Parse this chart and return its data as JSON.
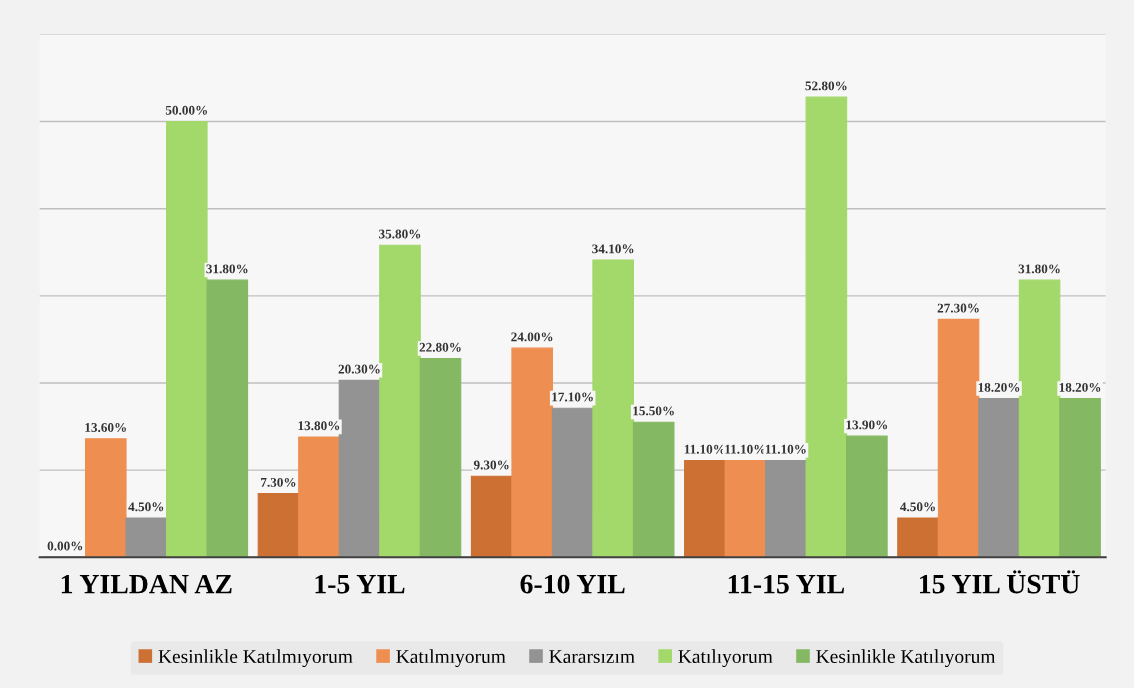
{
  "chart_data": {
    "type": "bar",
    "categories": [
      "1 YILDAN AZ",
      "1-5 YIL",
      "6-10 YIL",
      "11-15 YIL",
      "15 YIL ÜSTÜ"
    ],
    "series": [
      {
        "name": "Kesinlikle Katılmıyorum",
        "color": "#cc7033",
        "values": [
          0.0,
          7.3,
          9.3,
          11.1,
          4.5
        ],
        "value_labels": [
          "0.00%",
          "7.30%",
          "9.30%",
          "11.10%",
          "4.50%"
        ]
      },
      {
        "name": "Katılmıyorum",
        "color": "#ee8f51",
        "values": [
          13.6,
          13.8,
          24.0,
          11.1,
          27.3
        ],
        "value_labels": [
          "13.60%",
          "13.80%",
          "24.00%",
          "11.10%",
          "27.30%"
        ]
      },
      {
        "name": "Kararsızım",
        "color": "#939393",
        "values": [
          4.5,
          20.3,
          17.1,
          11.1,
          18.2
        ],
        "value_labels": [
          "4.50%",
          "20.30%",
          "17.10%",
          "11.10%",
          "18.20%"
        ]
      },
      {
        "name": "Katılıyorum",
        "color": "#a3d86a",
        "values": [
          50.0,
          35.8,
          34.1,
          52.8,
          31.8
        ],
        "value_labels": [
          "50.00%",
          "35.80%",
          "34.10%",
          "52.80%",
          "31.80%"
        ]
      },
      {
        "name": "Kesinlikle Katılıyorum",
        "color": "#84b862",
        "values": [
          31.8,
          22.8,
          15.5,
          13.9,
          18.2
        ],
        "value_labels": [
          "31.80%",
          "22.80%",
          "15.50%",
          "13.90%",
          "18.20%"
        ]
      }
    ],
    "ylim": [
      0,
      60
    ],
    "yticks": [
      {
        "value": 0,
        "label": null
      },
      {
        "value": 10,
        "label": null
      },
      {
        "value": 20,
        "label": null
      },
      {
        "value": 30,
        "label": null
      },
      {
        "value": 40,
        "label": null
      },
      {
        "value": 50,
        "label": null
      },
      {
        "value": 60,
        "label": null
      }
    ],
    "tick_labels": "x",
    "grid": "y",
    "legend": "bottom"
  }
}
